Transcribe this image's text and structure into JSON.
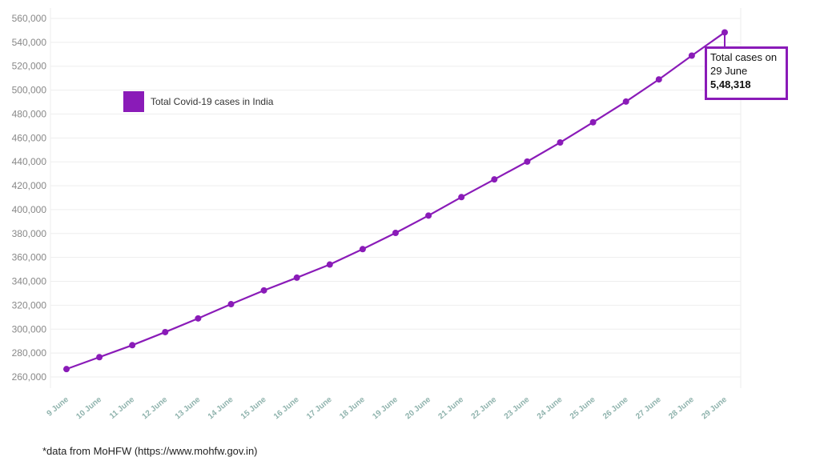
{
  "chart_data": {
    "type": "line",
    "title": "",
    "xlabel": "",
    "ylabel": "",
    "categories": [
      "9 June",
      "10 June",
      "11 June",
      "12 June",
      "13 June",
      "14 June",
      "15 June",
      "16 June",
      "17 June",
      "18 June",
      "19 June",
      "20 June",
      "21 June",
      "22 June",
      "23 June",
      "24 June",
      "25 June",
      "26 June",
      "27 June",
      "28 June",
      "29 June"
    ],
    "series": [
      {
        "name": "Total Covid-19 cases in India",
        "color": "#8a1bb8",
        "values": [
          266598,
          276583,
          286579,
          297535,
          308993,
          320922,
          332424,
          343091,
          354065,
          366946,
          380532,
          395048,
          410461,
          425282,
          440215,
          456183,
          473105,
          490401,
          508953,
          528859,
          548318
        ]
      }
    ],
    "ylim": [
      255000,
      562000
    ],
    "yticks": [
      "260,000",
      "280,000",
      "300,000",
      "320,000",
      "340,000",
      "360,000",
      "380,000",
      "400,000",
      "420,000",
      "440,000",
      "460,000",
      "480,000",
      "500,000",
      "520,000",
      "540,000",
      "560,000"
    ],
    "ytick_values": [
      260000,
      280000,
      300000,
      320000,
      340000,
      360000,
      380000,
      400000,
      420000,
      440000,
      460000,
      480000,
      500000,
      520000,
      540000,
      560000
    ],
    "grid": true,
    "legend_position": "top-left",
    "annotation": {
      "text_line1": "Total cases on",
      "text_line2": "29 June",
      "value": "5,48,318"
    },
    "source_note": "*data from MoHFW (https://www.mohfw.gov.in)"
  }
}
